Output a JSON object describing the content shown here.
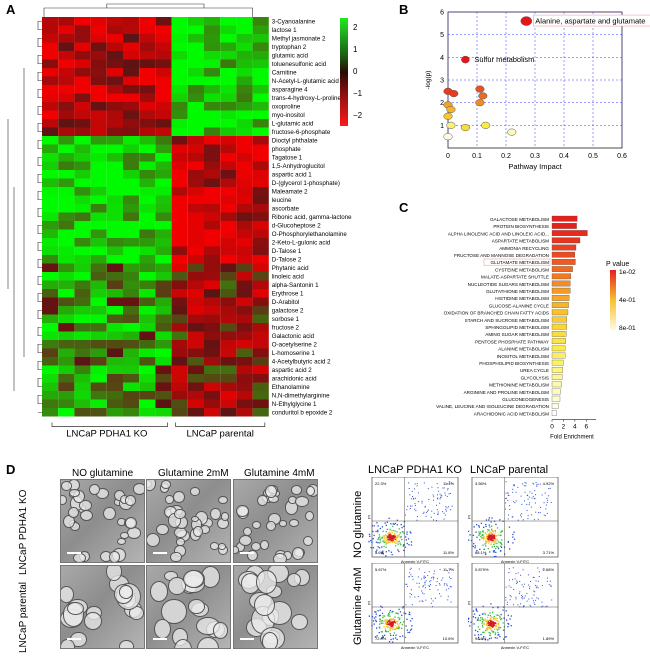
{
  "panels": {
    "a": "A",
    "b": "B",
    "c": "C",
    "d": "D"
  },
  "heatmap": {
    "rows": [
      "3-Cyanoalanine",
      "lactose 1",
      "Methyl jasmonate 2",
      "tryptophan 2",
      "glutamic acid",
      "toluenesulfonic acid",
      "Carnitine",
      "N-Acetyl-L-glutamic acid 2",
      "asparagine 4",
      "trans-4-hydroxy-L-proline 2",
      "oxoproline",
      "myo-inositol",
      "L-glutamic acid",
      "fructose-6-phosphate",
      "Dioctyl phthalate",
      "phosphate",
      "Tagatose 1",
      "1,5-Anhydroglucitol",
      "aspartic acid 1",
      "D-(glycerol 1-phosphate)",
      "Maleamate 2",
      "leucine",
      "ascorbate",
      "Ribonic acid, gamma-lactone",
      "d-Glucoheptose 2",
      "O-Phosphorylethanolamine",
      "2-Keto-L-gulonic acid",
      "D-Talose 1",
      "D-Talose 2",
      "Phytanic acid",
      "linoleic acid",
      "alpha-Santonin 1",
      "Erythrose 1",
      "D-Arabitol",
      "galactose 2",
      "sorbose 1",
      "fructose 2",
      "Galactonic acid",
      "O-acetylserine 2",
      "L-homoserine 1",
      "4-Acetylbutyric acid 2",
      "aspartic acid 2",
      "arachidonic acid",
      "Ethanolamine",
      "N,N-dimethylarginine",
      "N-Ethylglycine 1",
      "conduritol b epoxide 2"
    ],
    "colorbar_ticks": [
      "2",
      "1",
      "0",
      "−1",
      "−2"
    ],
    "group_labels": [
      "LNCaP PDHA1 KO",
      "LNCaP parental"
    ]
  },
  "chart_data": {
    "type": "scatter",
    "title": "",
    "xlabel": "Pathway Impact",
    "ylabel": "-log(p)",
    "xlim": [
      0,
      0.6
    ],
    "ylim": [
      0,
      6
    ],
    "xticks": [
      "0",
      "0.1",
      "0.2",
      "0.3",
      "0.4",
      "0.5",
      "0.6"
    ],
    "yticks": [
      "1",
      "2",
      "3",
      "4",
      "5",
      "6"
    ],
    "grid": true,
    "points": [
      {
        "x": 0.27,
        "y": 5.6,
        "color": "#e8141c",
        "label": "Alanine, aspartate and glutamate"
      },
      {
        "x": 0.06,
        "y": 3.9,
        "color": "#e8141c",
        "label": "Sulfur metabolism"
      },
      {
        "x": 0.0,
        "y": 2.5,
        "color": "#ea3a1e",
        "label": ""
      },
      {
        "x": 0.02,
        "y": 2.4,
        "color": "#ea3a1e",
        "label": ""
      },
      {
        "x": 0.11,
        "y": 2.6,
        "color": "#e9521f",
        "label": ""
      },
      {
        "x": 0.12,
        "y": 2.3,
        "color": "#ec6a22",
        "label": ""
      },
      {
        "x": 0.11,
        "y": 2.0,
        "color": "#ef8a25",
        "label": ""
      },
      {
        "x": 0.0,
        "y": 1.9,
        "color": "#f0a229",
        "label": ""
      },
      {
        "x": 0.01,
        "y": 1.7,
        "color": "#f4b42c",
        "label": ""
      },
      {
        "x": 0.0,
        "y": 1.4,
        "color": "#f7c831",
        "label": ""
      },
      {
        "x": 0.06,
        "y": 0.9,
        "color": "#f9dc36",
        "label": ""
      },
      {
        "x": 0.13,
        "y": 1.0,
        "color": "#fbe94a",
        "label": ""
      },
      {
        "x": 0.01,
        "y": 1.0,
        "color": "#fcf07a",
        "label": ""
      },
      {
        "x": 0.22,
        "y": 0.7,
        "color": "#fdf7bb",
        "label": ""
      },
      {
        "x": 0.0,
        "y": 0.5,
        "color": "#fefbe6",
        "label": ""
      }
    ]
  },
  "enrichment": {
    "type": "bar",
    "xlabel": "Fold Enrichment",
    "xticks": [
      "0",
      "2",
      "4",
      "6"
    ],
    "legend_title": "P value",
    "legend_ticks": [
      "1e-02",
      "4e-01",
      "8e-01"
    ],
    "highlight": "GLUTAMATE METABOLISM",
    "categories": [
      "GALACTOSE METABOLISM",
      "PROTEIN BIOSYNTHESIS",
      "ALPHA LINOLENIC ACID AND LINOLEIC ACID...",
      "ASPARTATE METABOLISM",
      "AMMONIA RECYCLING",
      "FRUCTOSE AND MANNOSE DEGRADATION",
      "GLUTAMATE METABOLISM",
      "CYSTEINE METABOLISM",
      "MALATE-ASPARTATE SHUTTLE",
      "NUCLEOTIDE SUGARS METABOLISM",
      "GLUTATHIONE METABOLISM",
      "HISTIDINE METABOLISM",
      "GLUCOSE-ALANINE CYCLE",
      "OXIDATION OF BRANCHED CHAIN FATTY ACIDS",
      "STARCH AND SUCROSE METABOLISM",
      "SPHINGOLIPID METABOLISM",
      "AMINO SUGAR METABOLISM",
      "PENTOSE PHOSPHATE PATHWAY",
      "ALANINE METABOLISM",
      "INOSITOL METABOLISM",
      "PHOSPHOLIPID BIOSYNTHESIS",
      "UREA CYCLE",
      "GLYCOLYSIS",
      "METHIONINE METABOLISM",
      "ARGININE AND PROLINE METABOLISM",
      "GLUCONEOGENESIS",
      "VALINE, LEUCINE AND ISOLEUCINE DEGRADATION",
      "ARACHIDONIC ACID METABOLISM"
    ],
    "values": [
      4.4,
      4.3,
      6.2,
      4.9,
      4.2,
      4.0,
      4.1,
      3.6,
      3.3,
      3.2,
      3.2,
      3.0,
      2.9,
      2.8,
      2.6,
      2.6,
      2.5,
      2.4,
      2.3,
      2.3,
      2.0,
      1.9,
      1.8,
      1.7,
      1.5,
      1.4,
      1.1,
      0.8
    ],
    "colors": [
      "#e4211c",
      "#e4211c",
      "#e62a1d",
      "#e8341e",
      "#ea4020",
      "#eb4b21",
      "#ee5a22",
      "#ef6a24",
      "#f07a25",
      "#f18a27",
      "#f39a29",
      "#f4a72b",
      "#f5b42d",
      "#f7c030",
      "#f8cb33",
      "#f9d537",
      "#fadd3c",
      "#fbe443",
      "#fbe94e",
      "#fcee5c",
      "#fcf16d",
      "#fdf481",
      "#fdf696",
      "#fdf8ab",
      "#fefac0",
      "#fefbd3",
      "#fefde6",
      "#ffffff"
    ]
  },
  "microscopy": {
    "col_labels": [
      "NO glutamine",
      "Glutamine 2mM",
      "Glutamine 4mM"
    ],
    "row_labels": [
      "LNCaP PDHA1 KO",
      "LNCaP parental"
    ]
  },
  "flow": {
    "col_labels": [
      "LNCaP PDHA1 KO",
      "LNCaP parental"
    ],
    "row_labels": [
      "NO glutamine",
      "Glutamine 4mM"
    ],
    "axis_x": "Annexin V-FITC",
    "axis_y": "PI",
    "quadrants": [
      {
        "q1": "22.3%",
        "q2": "11.4%",
        "q3": "5.6%",
        "q4": "11.8%"
      },
      {
        "q1": "3.56%",
        "q2": "4.92%",
        "q3": "88.1%",
        "q4": "3.71%"
      },
      {
        "q1": "5.67%",
        "q2": "11.7%",
        "q3": "72.0%",
        "q4": "10.6%"
      },
      {
        "q1": "0.879%",
        "q2": "2.68%",
        "q3": "94.6%",
        "q4": "1.89%"
      }
    ]
  }
}
